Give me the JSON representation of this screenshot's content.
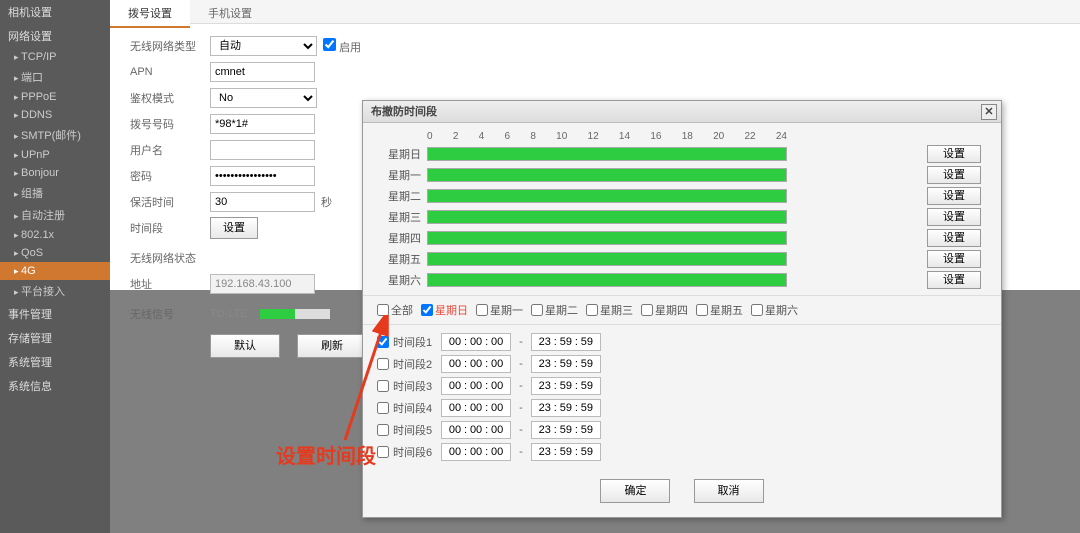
{
  "sidebar": {
    "sections": [
      {
        "label": "相机设置",
        "items": []
      },
      {
        "label": "网络设置",
        "items": [
          "TCP/IP",
          "端口",
          "PPPoE",
          "DDNS",
          "SMTP(邮件)",
          "UPnP",
          "Bonjour",
          "组播",
          "自动注册",
          "802.1x",
          "QoS",
          "4G",
          "平台接入"
        ],
        "selected": "4G"
      },
      {
        "label": "事件管理",
        "items": []
      },
      {
        "label": "存储管理",
        "items": []
      },
      {
        "label": "系统管理",
        "items": []
      },
      {
        "label": "系统信息",
        "items": []
      }
    ]
  },
  "tabs": {
    "active": "拨号设置",
    "items": [
      "拨号设置",
      "手机设置"
    ]
  },
  "form": {
    "net_type_label": "无线网络类型",
    "net_type_value": "自动",
    "enable_label": "启用",
    "enable_checked": true,
    "apn_label": "APN",
    "apn_value": "cmnet",
    "auth_label": "鉴权模式",
    "auth_value": "No",
    "dial_label": "拨号号码",
    "dial_value": "*98*1#",
    "user_label": "用户名",
    "user_value": "",
    "pwd_label": "密码",
    "pwd_value": "••••••••••••••••",
    "keep_label": "保活时间",
    "keep_value": "30",
    "keep_unit": "秒",
    "period_label": "时间段",
    "period_btn": "设置",
    "state_label": "无线网络状态",
    "addr_label": "地址",
    "addr_value": "192.168.43.100",
    "signal_label": "无线信号",
    "signal_value": "TD-LTE",
    "btn_default": "默认",
    "btn_refresh": "刷新"
  },
  "dialog": {
    "title": "布撤防时间段",
    "axis": [
      "0",
      "2",
      "4",
      "6",
      "8",
      "10",
      "12",
      "14",
      "16",
      "18",
      "20",
      "22",
      "24"
    ],
    "days": [
      "星期日",
      "星期一",
      "星期二",
      "星期三",
      "星期四",
      "星期五",
      "星期六"
    ],
    "set_btn": "设置",
    "all_label": "全部",
    "day_checks": [
      "星期日",
      "星期一",
      "星期二",
      "星期三",
      "星期四",
      "星期五",
      "星期六"
    ],
    "sunday_checked": true,
    "periods": [
      {
        "label": "时间段1",
        "checked": true,
        "from": [
          "00",
          "00",
          "00"
        ],
        "to": [
          "23",
          "59",
          "59"
        ]
      },
      {
        "label": "时间段2",
        "checked": false,
        "from": [
          "00",
          "00",
          "00"
        ],
        "to": [
          "23",
          "59",
          "59"
        ]
      },
      {
        "label": "时间段3",
        "checked": false,
        "from": [
          "00",
          "00",
          "00"
        ],
        "to": [
          "23",
          "59",
          "59"
        ]
      },
      {
        "label": "时间段4",
        "checked": false,
        "from": [
          "00",
          "00",
          "00"
        ],
        "to": [
          "23",
          "59",
          "59"
        ]
      },
      {
        "label": "时间段5",
        "checked": false,
        "from": [
          "00",
          "00",
          "00"
        ],
        "to": [
          "23",
          "59",
          "59"
        ]
      },
      {
        "label": "时间段6",
        "checked": false,
        "from": [
          "00",
          "00",
          "00"
        ],
        "to": [
          "23",
          "59",
          "59"
        ]
      }
    ],
    "btn_ok": "确定",
    "btn_cancel": "取消"
  },
  "annotation": "设置时间段",
  "colors": {
    "accent": "#d07830",
    "bar_fill": "#2ecc40",
    "arrow": "#e53a1e"
  }
}
